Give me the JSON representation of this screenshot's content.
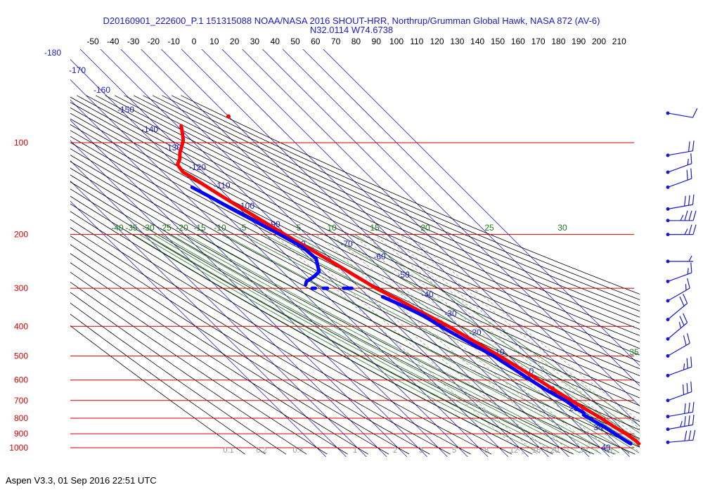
{
  "header": {
    "title_line1": "D20160901_222600_P.1 151315088 NOAA/NASA 2016 SHOUT-HRR, Northrup/Grumman Global Hawk, NASA 872 (AV-6)",
    "title_line2": "N32.0114 W74.6738"
  },
  "footer": {
    "text": "Aspen V3.3, 01 Sep 2016  22:51 UTC"
  },
  "chart_data": {
    "type": "skew-t log-p diagram",
    "top_temperature_labels": [
      "-50",
      "-40",
      "-30",
      "-20",
      "-10",
      "0",
      "10",
      "20",
      "30",
      "40",
      "50",
      "60",
      "70",
      "80",
      "90",
      "100",
      "110",
      "120",
      "130",
      "140",
      "150",
      "160",
      "170",
      "180",
      "190",
      "200",
      "210"
    ],
    "pressure_levels": [
      100,
      200,
      300,
      400,
      500,
      600,
      700,
      800,
      900,
      1000
    ],
    "dry_adiabat_labels": [
      "-180",
      "-170",
      "-160",
      "-150",
      "-140",
      "-130",
      "-120",
      "-110",
      "-100",
      "-90",
      "-80",
      "-70",
      "-60",
      "-50",
      "-40",
      "-30",
      "-20",
      "-10",
      "0",
      "10",
      "20",
      "30",
      "40"
    ],
    "moist_adiabat_labels": [
      "-40",
      "-35",
      "-30",
      "-25",
      "-20",
      "-15",
      "-10",
      "-5",
      "0",
      "5",
      "10",
      "15",
      "20",
      "25",
      "30",
      "35"
    ],
    "mixing_ratio_labels": [
      "0.1",
      "0.2",
      "0.4",
      "1",
      "2",
      "3",
      "5",
      "8",
      "12",
      "16",
      "20",
      "30",
      "40"
    ],
    "colors": {
      "temperature": "#ff0000",
      "dewpoint": "#0000ff",
      "isobar": "#cc0000",
      "pressure_label": "#dd0000",
      "isotherm": "#2323b0",
      "dry_adiabat": "#000000",
      "moist_adiabat": "#1a7a1a",
      "mixing_ratio": "#999999",
      "wind_barb": "#1a1acc",
      "label_blue": "#1a1acc"
    },
    "series": [
      {
        "name": "temperature",
        "units": "C",
        "points": [
          [
            970,
            21
          ],
          [
            950,
            21
          ],
          [
            900,
            19.5
          ],
          [
            850,
            17
          ],
          [
            800,
            15
          ],
          [
            750,
            12
          ],
          [
            700,
            9
          ],
          [
            650,
            6
          ],
          [
            600,
            3
          ],
          [
            550,
            -0.5
          ],
          [
            500,
            -4.5
          ],
          [
            450,
            -9.5
          ],
          [
            400,
            -15
          ],
          [
            380,
            -18
          ],
          [
            350,
            -23
          ],
          [
            330,
            -26
          ],
          [
            310,
            -30
          ],
          [
            300,
            -32
          ],
          [
            280,
            -35
          ],
          [
            250,
            -40
          ],
          [
            220,
            -46
          ],
          [
            200,
            -50.5
          ],
          [
            180,
            -55
          ],
          [
            160,
            -60
          ],
          [
            145,
            -64
          ],
          [
            130,
            -68
          ],
          [
            125,
            -70
          ],
          [
            118,
            -69
          ],
          [
            113,
            -65
          ],
          [
            108,
            -62
          ],
          [
            103,
            -58
          ],
          [
            98,
            -54
          ],
          [
            93,
            -51
          ],
          [
            88,
            -48
          ]
        ]
      },
      {
        "name": "dewpoint",
        "units": "C",
        "segments": [
          [
            [
              970,
              17
            ],
            [
              950,
              16
            ],
            [
              900,
              14
            ],
            [
              850,
              12
            ],
            [
              800,
              9
            ],
            [
              780,
              8
            ],
            [
              770,
              9
            ],
            [
              750,
              8
            ],
            [
              700,
              6
            ],
            [
              650,
              2
            ],
            [
              600,
              -1
            ],
            [
              550,
              -4
            ],
            [
              500,
              -7.5
            ],
            [
              450,
              -13
            ],
            [
              400,
              -19
            ],
            [
              370,
              -22
            ],
            [
              340,
              -28
            ],
            [
              320,
              -33
            ]
          ],
          [
            [
              300,
              -44
            ],
            [
              300,
              -48
            ]
          ],
          [
            [
              300,
              -56
            ],
            [
              300,
              -58
            ]
          ],
          [
            [
              300,
              -62
            ],
            [
              300,
              -63.5
            ]
          ],
          [
            [
              292,
              -65
            ],
            [
              285,
              -63
            ],
            [
              275,
              -57
            ],
            [
              265,
              -52
            ],
            [
              240,
              -47
            ],
            [
              220,
              -48
            ],
            [
              200,
              -53
            ],
            [
              180,
              -59
            ],
            [
              165,
              -64
            ],
            [
              150,
              -69
            ],
            [
              140,
              -73
            ]
          ]
        ]
      }
    ],
    "isolated_point": {
      "pressure": 82,
      "temperature": -20
    },
    "wind_barbs": [
      {
        "pressure": 80,
        "speed": 10,
        "dir": 280
      },
      {
        "pressure": 110,
        "speed": 20,
        "dir": 260
      },
      {
        "pressure": 125,
        "speed": 15,
        "dir": 250
      },
      {
        "pressure": 140,
        "speed": 20,
        "dir": 250
      },
      {
        "pressure": 165,
        "speed": 30,
        "dir": 260
      },
      {
        "pressure": 180,
        "speed": 35,
        "dir": 270
      },
      {
        "pressure": 200,
        "speed": 25,
        "dir": 270
      },
      {
        "pressure": 245,
        "speed": 5,
        "dir": 270
      },
      {
        "pressure": 285,
        "speed": 15,
        "dir": 250
      },
      {
        "pressure": 330,
        "speed": 15,
        "dir": 240
      },
      {
        "pressure": 380,
        "speed": 20,
        "dir": 230
      },
      {
        "pressure": 440,
        "speed": 25,
        "dir": 230
      },
      {
        "pressure": 500,
        "speed": 20,
        "dir": 240
      },
      {
        "pressure": 580,
        "speed": 25,
        "dir": 250
      },
      {
        "pressure": 700,
        "speed": 30,
        "dir": 250
      },
      {
        "pressure": 790,
        "speed": 30,
        "dir": 260
      },
      {
        "pressure": 870,
        "speed": 35,
        "dir": 260
      },
      {
        "pressure": 960,
        "speed": 30,
        "dir": 265
      }
    ]
  }
}
